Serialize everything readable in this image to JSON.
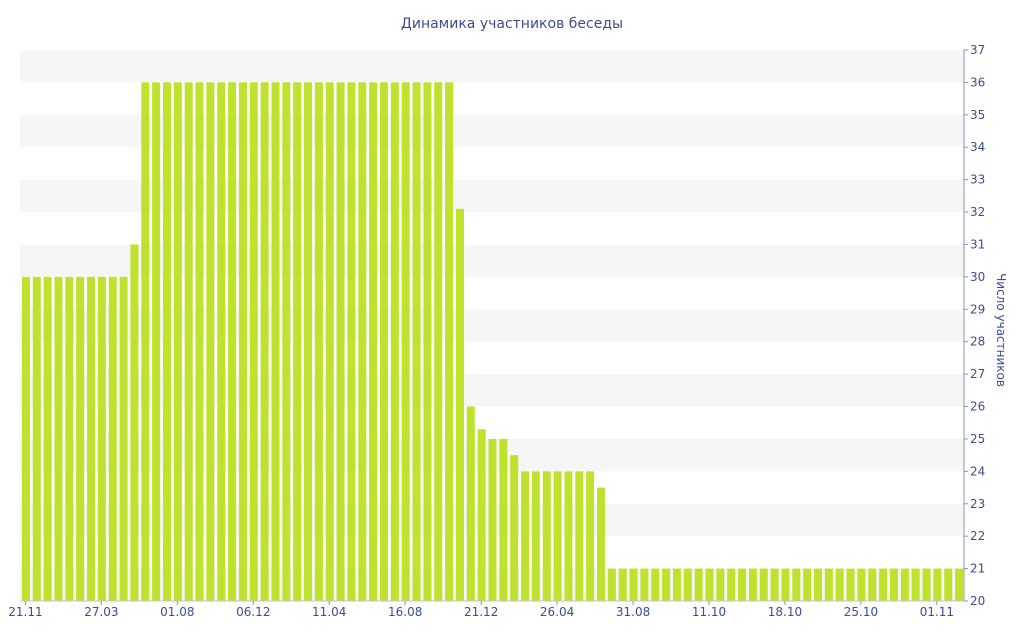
{
  "chart_data": {
    "type": "bar",
    "title": "Динамика участников беседы",
    "xlabel": "",
    "ylabel": "Число участников",
    "ylim": [
      20,
      37
    ],
    "yticks": [
      20,
      21,
      22,
      23,
      24,
      25,
      26,
      27,
      28,
      29,
      30,
      31,
      32,
      33,
      34,
      35,
      36,
      37
    ],
    "y_axis_side": "right",
    "grid": "alternating horizontal bands",
    "bar_color": "#bfe22e",
    "band_color": "#f6f6f6",
    "text_color": "#3c4d8f",
    "x_tick_labels": [
      {
        "label": "21.11",
        "index": 0
      },
      {
        "label": "27.03",
        "index": 7
      },
      {
        "label": "01.08",
        "index": 14
      },
      {
        "label": "06.12",
        "index": 21
      },
      {
        "label": "11.04",
        "index": 28
      },
      {
        "label": "16.08",
        "index": 35
      },
      {
        "label": "21.12",
        "index": 42
      },
      {
        "label": "26.04",
        "index": 49
      },
      {
        "label": "31.08",
        "index": 56
      },
      {
        "label": "11.10",
        "index": 63
      },
      {
        "label": "18.10",
        "index": 70
      },
      {
        "label": "25.10",
        "index": 77
      },
      {
        "label": "01.11",
        "index": 84
      }
    ],
    "values": [
      30,
      30,
      30,
      30,
      30,
      30,
      30,
      30,
      30,
      30,
      31,
      36,
      36,
      36,
      36,
      36,
      36,
      36,
      36,
      36,
      36,
      36,
      36,
      36,
      36,
      36,
      36,
      36,
      36,
      36,
      36,
      36,
      36,
      36,
      36,
      36,
      36,
      36,
      36,
      36,
      32.1,
      26,
      25.3,
      25,
      25,
      24.5,
      24,
      24,
      24,
      24,
      24,
      24,
      24,
      23.5,
      21,
      21,
      21,
      21,
      21,
      21,
      21,
      21,
      21,
      21,
      21,
      21,
      21,
      21,
      21,
      21,
      21,
      21,
      21,
      21,
      21,
      21,
      21,
      21,
      21,
      21,
      21,
      21,
      21,
      21,
      21,
      21,
      21
    ]
  }
}
